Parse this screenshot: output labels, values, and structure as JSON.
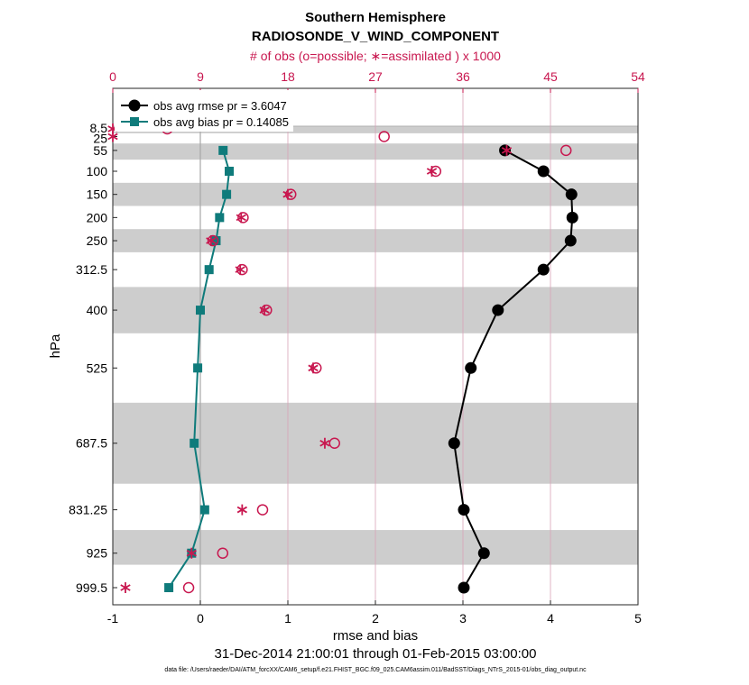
{
  "chart_data": {
    "type": "line",
    "title": "Southern Hemisphere",
    "subtitle": "RADIOSONDE_V_WIND_COMPONENT",
    "top_axis_label": "# of obs (o=possible; ∗=assimilated ) x 1000",
    "xlabel": "rmse and bias",
    "ylabel": "hPa",
    "date_range": "31-Dec-2014 21:00:01 through 01-Feb-2015 03:00:00",
    "footnote": "data file: /Users/raeder/DAI/ATM_forcXX/CAM6_setup/f.e21.FHIST_BGC.f09_025.CAM6assim.011/BadSST/Diags_NTrS_2015-01/obs_diag_output.nc",
    "xlim": [
      -1,
      5
    ],
    "x_ticks": [
      "-1",
      "0",
      "1",
      "2",
      "3",
      "4",
      "5"
    ],
    "x_tick_values": [
      -1,
      0,
      1,
      2,
      3,
      4,
      5
    ],
    "top_xlim": [
      0,
      54
    ],
    "top_ticks": [
      "0",
      "9",
      "18",
      "27",
      "36",
      "45",
      "54"
    ],
    "top_tick_values": [
      0,
      9,
      18,
      27,
      36,
      45,
      54
    ],
    "y_axis": "pressure (reversed, linear)",
    "ylim": [
      0,
      1030
    ],
    "levels": [
      8.5,
      25,
      55,
      100,
      150,
      200,
      250,
      312.5,
      400,
      525,
      687.5,
      831.25,
      925,
      999.5
    ],
    "level_labels": [
      "8.5",
      "25",
      "55",
      "100",
      "150",
      "200",
      "250",
      "312.5",
      "400",
      "525",
      "687.5",
      "831.25",
      "925",
      "999.5"
    ],
    "bands": [
      [
        2,
        18
      ],
      [
        40,
        75
      ],
      [
        125,
        175
      ],
      [
        225,
        275
      ],
      [
        350,
        450
      ],
      [
        600,
        775
      ],
      [
        875,
        950
      ]
    ],
    "series": [
      {
        "name": "obs avg rmse pr = 3.6047",
        "color": "#000000",
        "marker": "circle",
        "levels": [
          55,
          100,
          150,
          200,
          250,
          312.5,
          400,
          525,
          687.5,
          831.25,
          925,
          999.5
        ],
        "values": [
          3.48,
          3.92,
          4.24,
          4.25,
          4.23,
          3.92,
          3.4,
          3.09,
          2.9,
          3.01,
          3.24,
          3.01
        ]
      },
      {
        "name": "obs avg bias pr = 0.14085",
        "color": "#0f7b7b",
        "marker": "square",
        "levels": [
          55,
          100,
          150,
          200,
          250,
          312.5,
          400,
          525,
          687.5,
          831.25,
          925,
          999.5
        ],
        "values": [
          0.26,
          0.33,
          0.3,
          0.22,
          0.18,
          0.1,
          0.0,
          -0.03,
          -0.07,
          0.05,
          -0.1,
          -0.36
        ]
      }
    ],
    "obs_possible": {
      "levels": [
        8.5,
        25,
        55,
        100,
        150,
        200,
        250,
        312.5,
        400,
        525,
        687.5,
        831.25,
        925,
        999.5
      ],
      "values": [
        5.6,
        27.9,
        46.6,
        33.2,
        18.3,
        13.4,
        10.3,
        13.3,
        15.8,
        20.9,
        22.8,
        15.4,
        11.3,
        7.8
      ]
    },
    "obs_assimilated": {
      "levels": [
        8.5,
        25,
        55,
        100,
        150,
        200,
        250,
        312.5,
        400,
        525,
        687.5,
        831.25,
        925,
        999.5
      ],
      "values": [
        0.0,
        0.0,
        40.5,
        32.8,
        18.0,
        13.2,
        10.1,
        13.1,
        15.6,
        20.6,
        21.8,
        13.3,
        8.1,
        1.3
      ]
    },
    "legend_position": "top-left"
  }
}
